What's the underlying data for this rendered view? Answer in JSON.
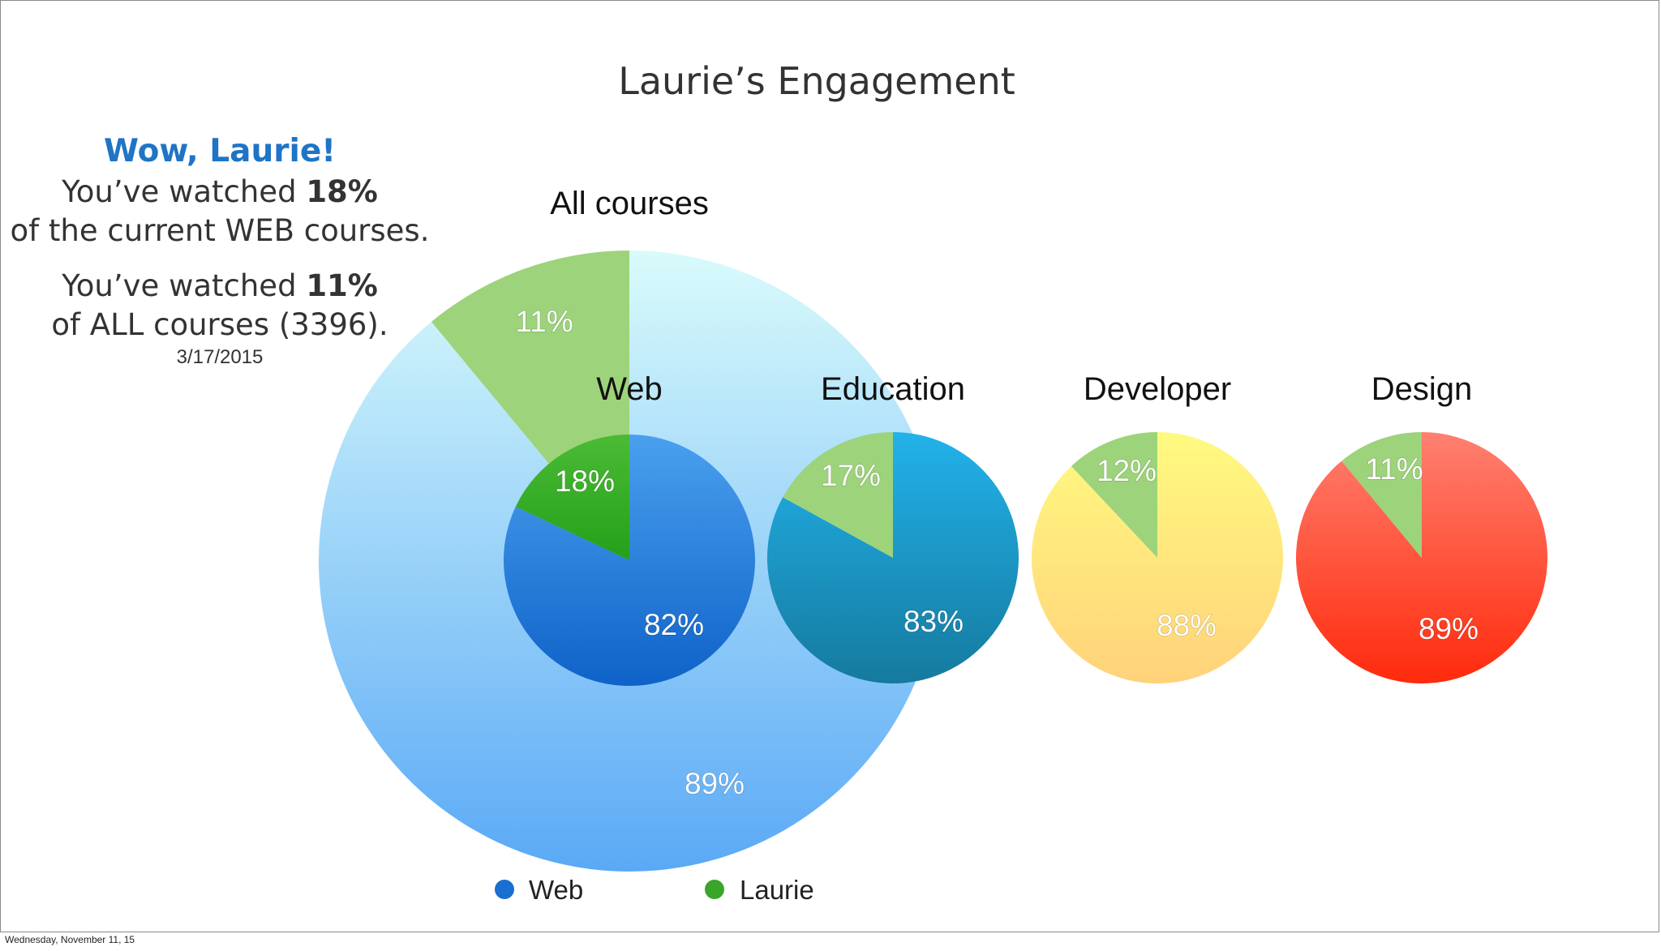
{
  "title": "Laurie’s Engagement",
  "sidebar": {
    "heading": "Wow, Laurie!",
    "line1_pre": "You’ve watched ",
    "line1_value": "18%",
    "line2": "of the current WEB courses.",
    "line3_pre": "You’ve watched ",
    "line3_value": "11%",
    "line4": "of ALL courses (3396).",
    "date": "3/17/2015"
  },
  "footer": "Wednesday, November 11, 15",
  "colors": {
    "laurie_green": "#9dd37a",
    "laurie_green_web": "#3aa52b",
    "web_blue": "#1a6fd0",
    "all_light_blue": "#7cc0f7",
    "education": "#1890c0",
    "developer": "#ffe57a",
    "design": "#ff3a1e"
  },
  "chart_data": [
    {
      "type": "pie",
      "title": "All courses",
      "slices": [
        {
          "label": "11%",
          "value": 11
        },
        {
          "label": "89%",
          "value": 89
        }
      ]
    },
    {
      "type": "pie",
      "title": "Web",
      "slices": [
        {
          "label": "18%",
          "value": 18
        },
        {
          "label": "82%",
          "value": 82
        }
      ]
    },
    {
      "type": "pie",
      "title": "Education",
      "slices": [
        {
          "label": "17%",
          "value": 17
        },
        {
          "label": "83%",
          "value": 83
        }
      ]
    },
    {
      "type": "pie",
      "title": "Developer",
      "slices": [
        {
          "label": "12%",
          "value": 12
        },
        {
          "label": "88%",
          "value": 88
        }
      ]
    },
    {
      "type": "pie",
      "title": "Design",
      "slices": [
        {
          "label": "11%",
          "value": 11
        },
        {
          "label": "89%",
          "value": 89
        }
      ]
    }
  ],
  "legend": [
    {
      "label": "Web",
      "color": "#1a6fd0"
    },
    {
      "label": "Laurie",
      "color": "#3aa52b"
    }
  ]
}
